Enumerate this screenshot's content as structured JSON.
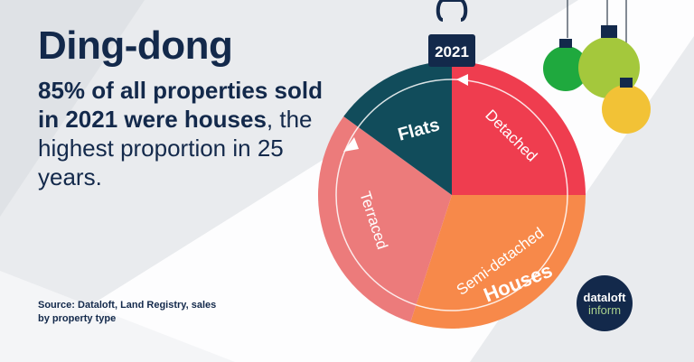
{
  "headline": {
    "title": "Ding-dong",
    "line_bold": "85% of all properties sold in 2021 were houses",
    "line_regular": ", the highest proportion in 25 years."
  },
  "source": "Source: Dataloft, Land Registry, sales by property type",
  "logo": {
    "line1": "dataloft",
    "line2": "inform"
  },
  "colors": {
    "background": "#e9ebee",
    "navy": "#13294b",
    "detached": "#ef3d4f",
    "semi_detached": "#f7894a",
    "terraced": "#ec7b7b",
    "flats": "#114c5b",
    "bauble_green": "#1fa93e",
    "bauble_lime": "#a4c83c",
    "bauble_yellow": "#f2c236"
  },
  "chart_data": {
    "type": "pie",
    "title": "2021",
    "group_label": "Houses",
    "slices": [
      {
        "label": "Detached",
        "value": 25,
        "color": "#ef3d4f"
      },
      {
        "label": "Semi-detached",
        "value": 30,
        "color": "#f7894a"
      },
      {
        "label": "Terraced",
        "value": 30,
        "color": "#ec7b7b"
      },
      {
        "label": "Flats",
        "value": 15,
        "color": "#114c5b"
      }
    ]
  }
}
